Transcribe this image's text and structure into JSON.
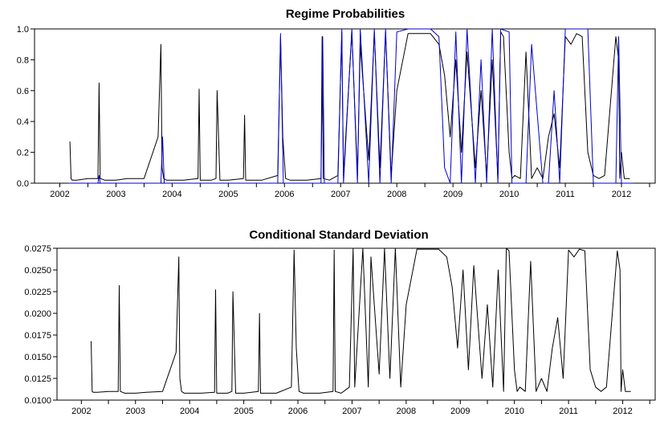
{
  "chart_data": [
    {
      "type": "line",
      "title": "Regime Probabilities",
      "xlabel": "",
      "ylabel": "",
      "xlim": [
        2001.55,
        2012.6
      ],
      "ylim": [
        0.0,
        1.0
      ],
      "x_ticks": [
        "2002",
        "2003",
        "2004",
        "2005",
        "2006",
        "2007",
        "2008",
        "2009",
        "2010",
        "2011",
        "2012"
      ],
      "y_ticks": [
        "0.0",
        "0.2",
        "0.4",
        "0.6",
        "0.8",
        "1.0"
      ],
      "grid": false,
      "legend": "none",
      "series": [
        {
          "color": "#000000",
          "x": [
            2002.18,
            2002.2,
            2002.22,
            2002.3,
            2002.5,
            2002.68,
            2002.7,
            2002.72,
            2002.8,
            2003.0,
            2003.2,
            2003.5,
            2003.75,
            2003.8,
            2003.82,
            2003.85,
            2003.9,
            2004.2,
            2004.46,
            2004.48,
            2004.5,
            2004.7,
            2004.78,
            2004.8,
            2004.85,
            2005.0,
            2005.27,
            2005.29,
            2005.31,
            2005.6,
            2005.88,
            2005.93,
            2005.97,
            2006.02,
            2006.1,
            2006.4,
            2006.65,
            2006.67,
            2006.69,
            2006.8,
            2006.95,
            2007.02,
            2007.05,
            2007.2,
            2007.3,
            2007.35,
            2007.5,
            2007.6,
            2007.7,
            2007.8,
            2007.9,
            2008.0,
            2008.2,
            2008.4,
            2008.6,
            2008.75,
            2008.85,
            2008.95,
            2009.05,
            2009.15,
            2009.25,
            2009.4,
            2009.5,
            2009.6,
            2009.7,
            2009.8,
            2009.85,
            2009.9,
            2010.0,
            2010.05,
            2010.1,
            2010.2,
            2010.3,
            2010.4,
            2010.5,
            2010.6,
            2010.7,
            2010.8,
            2010.9,
            2011.0,
            2011.1,
            2011.2,
            2011.3,
            2011.4,
            2011.5,
            2011.6,
            2011.7,
            2011.9,
            2011.95,
            2011.97,
            2012.0,
            2012.05,
            2012.15
          ],
          "values": [
            0.27,
            0.03,
            0.02,
            0.02,
            0.03,
            0.03,
            0.65,
            0.03,
            0.02,
            0.02,
            0.03,
            0.03,
            0.3,
            0.9,
            0.1,
            0.03,
            0.02,
            0.02,
            0.03,
            0.61,
            0.02,
            0.02,
            0.03,
            0.6,
            0.02,
            0.02,
            0.03,
            0.44,
            0.02,
            0.02,
            0.05,
            0.95,
            0.3,
            0.03,
            0.02,
            0.02,
            0.03,
            0.95,
            0.03,
            0.02,
            0.05,
            0.98,
            0.05,
            0.98,
            0.05,
            0.9,
            0.15,
            0.98,
            0.1,
            0.98,
            0.05,
            0.6,
            0.97,
            0.97,
            0.97,
            0.9,
            0.7,
            0.3,
            0.8,
            0.2,
            0.85,
            0.1,
            0.6,
            0.05,
            0.8,
            0.03,
            0.98,
            0.95,
            0.2,
            0.03,
            0.05,
            0.03,
            0.85,
            0.03,
            0.1,
            0.03,
            0.3,
            0.45,
            0.1,
            0.95,
            0.9,
            0.97,
            0.95,
            0.2,
            0.05,
            0.03,
            0.05,
            0.95,
            0.8,
            0.03,
            0.2,
            0.03,
            0.03
          ]
        },
        {
          "color": "#0000cc",
          "x": [
            2002.15,
            2002.68,
            2002.7,
            2002.72,
            2003.8,
            2003.83,
            2003.86,
            2005.88,
            2005.93,
            2005.98,
            2006.65,
            2006.68,
            2006.71,
            2006.95,
            2007.02,
            2007.05,
            2007.2,
            2007.3,
            2007.35,
            2007.5,
            2007.6,
            2007.7,
            2007.8,
            2007.9,
            2008.0,
            2008.2,
            2008.6,
            2008.75,
            2008.85,
            2008.95,
            2009.05,
            2009.15,
            2009.25,
            2009.4,
            2009.5,
            2009.6,
            2009.7,
            2009.8,
            2009.85,
            2010.0,
            2010.05,
            2010.3,
            2010.4,
            2010.6,
            2010.7,
            2010.8,
            2010.9,
            2011.0,
            2011.1,
            2011.4,
            2011.5,
            2011.9,
            2011.95,
            2012.0,
            2012.2
          ],
          "values": [
            0.0,
            0.0,
            0.05,
            0.0,
            0.0,
            0.3,
            0.0,
            0.0,
            0.97,
            0.0,
            0.0,
            0.95,
            0.0,
            0.0,
            1.0,
            0.0,
            1.0,
            0.0,
            1.0,
            0.0,
            1.0,
            0.0,
            1.0,
            0.0,
            0.98,
            1.0,
            1.0,
            0.95,
            0.1,
            0.0,
            0.98,
            0.0,
            1.0,
            0.0,
            0.8,
            0.0,
            1.0,
            0.0,
            1.0,
            0.98,
            0.0,
            0.0,
            0.9,
            0.0,
            0.0,
            0.6,
            0.0,
            1.0,
            1.0,
            1.0,
            0.0,
            0.0,
            0.95,
            0.0,
            0.0
          ]
        }
      ]
    },
    {
      "type": "line",
      "title": "Conditional Standard Deviation",
      "xlabel": "",
      "ylabel": "",
      "xlim": [
        2001.55,
        2012.6
      ],
      "ylim": [
        0.01,
        0.0275
      ],
      "x_ticks": [
        "2002",
        "2003",
        "2004",
        "2005",
        "2006",
        "2007",
        "2008",
        "2009",
        "2010",
        "2011",
        "2012"
      ],
      "y_ticks": [
        "0.0100",
        "0.0125",
        "0.0150",
        "0.0175",
        "0.0200",
        "0.0225",
        "0.0250",
        "0.0275"
      ],
      "grid": false,
      "legend": "none",
      "series": [
        {
          "color": "#000000",
          "x": [
            2002.18,
            2002.2,
            2002.22,
            2002.3,
            2002.5,
            2002.68,
            2002.7,
            2002.72,
            2002.8,
            2003.0,
            2003.2,
            2003.5,
            2003.75,
            2003.8,
            2003.82,
            2003.85,
            2003.9,
            2004.2,
            2004.46,
            2004.48,
            2004.5,
            2004.7,
            2004.78,
            2004.8,
            2004.85,
            2005.0,
            2005.27,
            2005.29,
            2005.31,
            2005.6,
            2005.88,
            2005.93,
            2005.97,
            2006.02,
            2006.1,
            2006.4,
            2006.65,
            2006.67,
            2006.69,
            2006.8,
            2006.95,
            2007.02,
            2007.05,
            2007.2,
            2007.3,
            2007.35,
            2007.5,
            2007.6,
            2007.7,
            2007.8,
            2007.9,
            2008.0,
            2008.2,
            2008.4,
            2008.6,
            2008.75,
            2008.85,
            2008.95,
            2009.05,
            2009.15,
            2009.25,
            2009.4,
            2009.5,
            2009.6,
            2009.7,
            2009.8,
            2009.85,
            2009.9,
            2010.0,
            2010.05,
            2010.1,
            2010.2,
            2010.3,
            2010.4,
            2010.5,
            2010.6,
            2010.7,
            2010.8,
            2010.9,
            2011.0,
            2011.1,
            2011.2,
            2011.3,
            2011.4,
            2011.5,
            2011.6,
            2011.7,
            2011.9,
            2011.95,
            2011.97,
            2012.0,
            2012.05,
            2012.15
          ],
          "values": [
            0.0168,
            0.011,
            0.0109,
            0.0109,
            0.011,
            0.011,
            0.0232,
            0.011,
            0.0108,
            0.0108,
            0.0109,
            0.011,
            0.0155,
            0.0265,
            0.0125,
            0.011,
            0.0108,
            0.0108,
            0.0109,
            0.0227,
            0.0108,
            0.0108,
            0.011,
            0.0225,
            0.0108,
            0.0108,
            0.011,
            0.02,
            0.0108,
            0.0108,
            0.0115,
            0.0273,
            0.016,
            0.011,
            0.0108,
            0.0108,
            0.011,
            0.0273,
            0.011,
            0.0108,
            0.0115,
            0.0275,
            0.0115,
            0.0275,
            0.0115,
            0.0265,
            0.013,
            0.0275,
            0.0125,
            0.0275,
            0.0115,
            0.021,
            0.0274,
            0.0274,
            0.0274,
            0.0265,
            0.023,
            0.016,
            0.025,
            0.0135,
            0.0255,
            0.0125,
            0.021,
            0.0115,
            0.025,
            0.011,
            0.0275,
            0.0272,
            0.0135,
            0.011,
            0.0115,
            0.011,
            0.026,
            0.011,
            0.0125,
            0.011,
            0.016,
            0.0195,
            0.0125,
            0.0273,
            0.0265,
            0.0274,
            0.0272,
            0.0135,
            0.0115,
            0.011,
            0.0115,
            0.0272,
            0.025,
            0.011,
            0.0135,
            0.011,
            0.011
          ]
        }
      ]
    }
  ]
}
